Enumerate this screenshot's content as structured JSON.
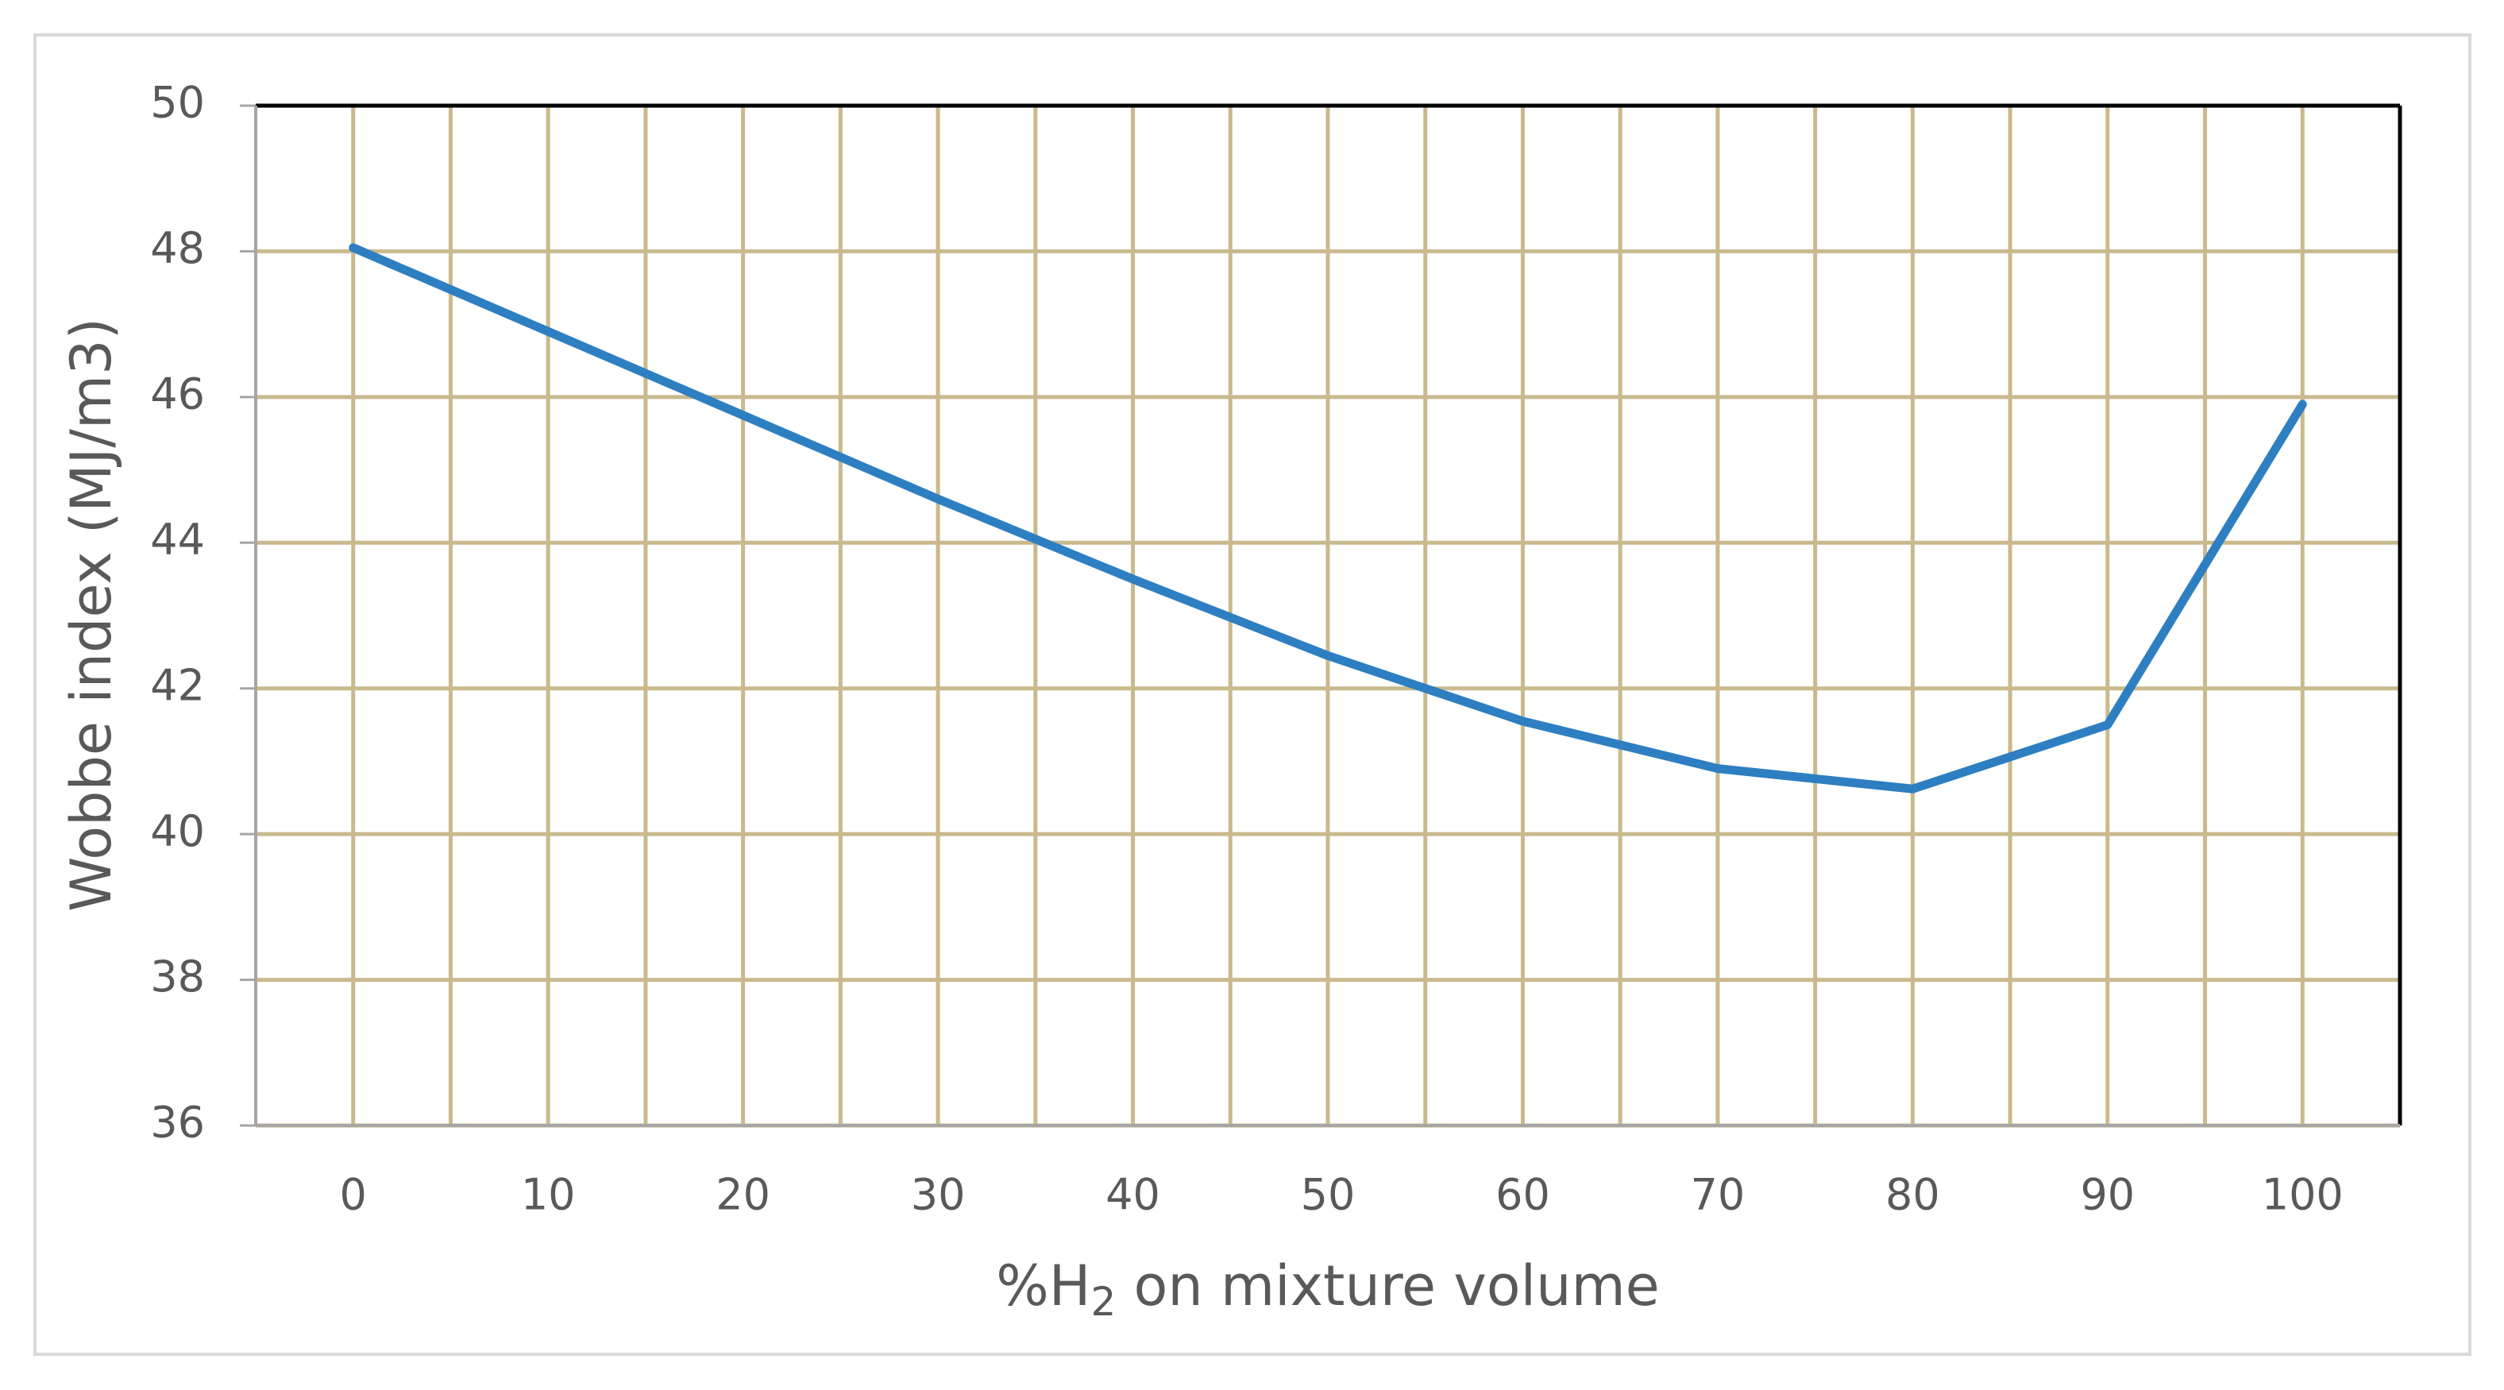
{
  "chart_data": {
    "type": "line",
    "ylabel": "Wobbe index (MJ/m3)",
    "xlabel_parts": [
      "%H",
      "2",
      " on mixture volume"
    ],
    "categories": [
      "0",
      "10",
      "20",
      "30",
      "40",
      "50",
      "60",
      "70",
      "80",
      "90",
      "100"
    ],
    "series": [
      {
        "color": "#2e7fc1",
        "values": [
          48.05,
          46.9,
          45.75,
          44.6,
          43.5,
          42.45,
          41.55,
          40.9,
          40.62,
          41.5,
          45.9
        ]
      }
    ],
    "ylim": [
      36,
      50
    ],
    "yticks": [
      36,
      38,
      40,
      42,
      44,
      46,
      48,
      50
    ],
    "grid": true,
    "grid_color": "#c9b98d"
  }
}
